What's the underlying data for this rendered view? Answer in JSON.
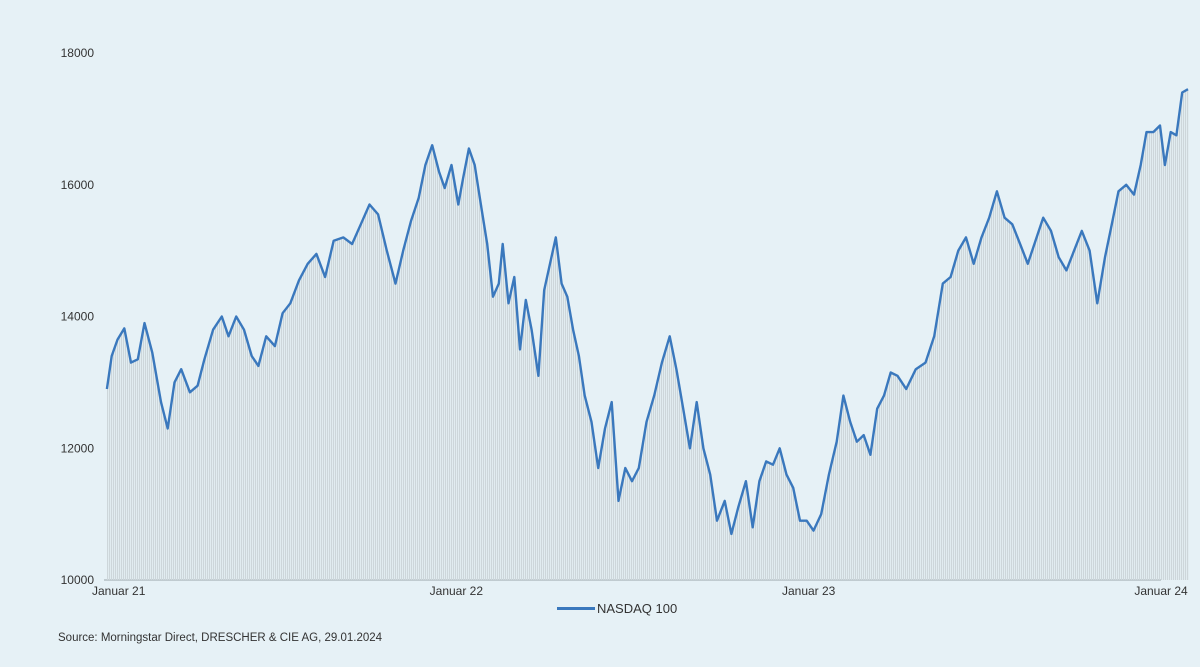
{
  "chart_data": {
    "type": "line",
    "title": "",
    "xlabel": "",
    "ylabel": "",
    "ylim": [
      10000,
      18000
    ],
    "y_ticks": [
      "10000",
      "12000",
      "14000",
      "16000",
      "18000"
    ],
    "x_ticks": [
      {
        "label": "Januar 21",
        "x": "2021-01"
      },
      {
        "label": "Januar 22",
        "x": "2022-01"
      },
      {
        "label": "Januar 23",
        "x": "2023-01"
      },
      {
        "label": "Januar 24",
        "x": "2024-01"
      }
    ],
    "x_range": [
      "2021-01",
      "2024-01"
    ],
    "grid": false,
    "legend": "bottom",
    "colors": {
      "line": "#3a78bd",
      "fill": "#cdd6da",
      "background": "#e6f1f6"
    },
    "series": [
      {
        "name": "NASDAQ 100",
        "points": [
          [
            "2021-01-04",
            12900
          ],
          [
            "2021-01-09",
            13400
          ],
          [
            "2021-01-15",
            13650
          ],
          [
            "2021-01-22",
            13820
          ],
          [
            "2021-01-29",
            13300
          ],
          [
            "2021-02-05",
            13350
          ],
          [
            "2021-02-12",
            13900
          ],
          [
            "2021-02-20",
            13450
          ],
          [
            "2021-03-01",
            12700
          ],
          [
            "2021-03-08",
            12300
          ],
          [
            "2021-03-15",
            13000
          ],
          [
            "2021-03-22",
            13200
          ],
          [
            "2021-03-31",
            12850
          ],
          [
            "2021-04-08",
            12950
          ],
          [
            "2021-04-15",
            13350
          ],
          [
            "2021-04-24",
            13800
          ],
          [
            "2021-05-03",
            14000
          ],
          [
            "2021-05-10",
            13700
          ],
          [
            "2021-05-18",
            14000
          ],
          [
            "2021-05-26",
            13800
          ],
          [
            "2021-06-03",
            13400
          ],
          [
            "2021-06-10",
            13250
          ],
          [
            "2021-06-18",
            13700
          ],
          [
            "2021-06-27",
            13550
          ],
          [
            "2021-07-05",
            14050
          ],
          [
            "2021-07-13",
            14200
          ],
          [
            "2021-07-22",
            14550
          ],
          [
            "2021-07-31",
            14800
          ],
          [
            "2021-08-09",
            14950
          ],
          [
            "2021-08-18",
            14600
          ],
          [
            "2021-08-27",
            15150
          ],
          [
            "2021-09-06",
            15200
          ],
          [
            "2021-09-15",
            15100
          ],
          [
            "2021-09-24",
            15400
          ],
          [
            "2021-10-03",
            15700
          ],
          [
            "2021-10-12",
            15550
          ],
          [
            "2021-10-21",
            15000
          ],
          [
            "2021-10-30",
            14500
          ],
          [
            "2021-11-07",
            15000
          ],
          [
            "2021-11-15",
            15450
          ],
          [
            "2021-11-23",
            15800
          ],
          [
            "2021-11-30",
            16300
          ],
          [
            "2021-12-07",
            16600
          ],
          [
            "2021-12-14",
            16200
          ],
          [
            "2021-12-20",
            15950
          ],
          [
            "2021-12-27",
            16300
          ],
          [
            "2022-01-03",
            15700
          ],
          [
            "2022-01-08",
            16100
          ],
          [
            "2022-01-14",
            16550
          ],
          [
            "2022-01-20",
            16300
          ],
          [
            "2022-01-27",
            15650
          ],
          [
            "2022-02-02",
            15100
          ],
          [
            "2022-02-08",
            14300
          ],
          [
            "2022-02-14",
            14500
          ],
          [
            "2022-02-18",
            15100
          ],
          [
            "2022-02-24",
            14200
          ],
          [
            "2022-03-02",
            14600
          ],
          [
            "2022-03-08",
            13500
          ],
          [
            "2022-03-14",
            14250
          ],
          [
            "2022-03-20",
            13800
          ],
          [
            "2022-03-27",
            13100
          ],
          [
            "2022-04-02",
            14400
          ],
          [
            "2022-04-08",
            14800
          ],
          [
            "2022-04-14",
            15200
          ],
          [
            "2022-04-20",
            14500
          ],
          [
            "2022-04-26",
            14300
          ],
          [
            "2022-05-02",
            13800
          ],
          [
            "2022-05-08",
            13400
          ],
          [
            "2022-05-14",
            12800
          ],
          [
            "2022-05-21",
            12400
          ],
          [
            "2022-05-28",
            11700
          ],
          [
            "2022-06-04",
            12300
          ],
          [
            "2022-06-11",
            12700
          ],
          [
            "2022-06-18",
            11200
          ],
          [
            "2022-06-25",
            11700
          ],
          [
            "2022-07-02",
            11500
          ],
          [
            "2022-07-09",
            11700
          ],
          [
            "2022-07-17",
            12400
          ],
          [
            "2022-07-25",
            12800
          ],
          [
            "2022-08-02",
            13300
          ],
          [
            "2022-08-10",
            13700
          ],
          [
            "2022-08-17",
            13200
          ],
          [
            "2022-08-24",
            12600
          ],
          [
            "2022-08-31",
            12000
          ],
          [
            "2022-09-07",
            12700
          ],
          [
            "2022-09-14",
            12000
          ],
          [
            "2022-09-21",
            11600
          ],
          [
            "2022-09-28",
            10900
          ],
          [
            "2022-10-06",
            11200
          ],
          [
            "2022-10-13",
            10700
          ],
          [
            "2022-10-20",
            11100
          ],
          [
            "2022-10-28",
            11500
          ],
          [
            "2022-11-04",
            10800
          ],
          [
            "2022-11-11",
            11500
          ],
          [
            "2022-11-18",
            11800
          ],
          [
            "2022-11-25",
            11750
          ],
          [
            "2022-12-02",
            12000
          ],
          [
            "2022-12-09",
            11600
          ],
          [
            "2022-12-16",
            11400
          ],
          [
            "2022-12-23",
            10900
          ],
          [
            "2022-12-30",
            10900
          ],
          [
            "2023-01-06",
            10750
          ],
          [
            "2023-01-14",
            11000
          ],
          [
            "2023-01-22",
            11600
          ],
          [
            "2023-01-30",
            12100
          ],
          [
            "2023-02-06",
            12800
          ],
          [
            "2023-02-13",
            12400
          ],
          [
            "2023-02-20",
            12100
          ],
          [
            "2023-02-27",
            12200
          ],
          [
            "2023-03-06",
            11900
          ],
          [
            "2023-03-13",
            12600
          ],
          [
            "2023-03-20",
            12800
          ],
          [
            "2023-03-27",
            13150
          ],
          [
            "2023-04-03",
            13100
          ],
          [
            "2023-04-12",
            12900
          ],
          [
            "2023-04-22",
            13200
          ],
          [
            "2023-05-02",
            13300
          ],
          [
            "2023-05-11",
            13700
          ],
          [
            "2023-05-20",
            14500
          ],
          [
            "2023-05-28",
            14600
          ],
          [
            "2023-06-05",
            15000
          ],
          [
            "2023-06-13",
            15200
          ],
          [
            "2023-06-21",
            14800
          ],
          [
            "2023-06-29",
            15200
          ],
          [
            "2023-07-07",
            15500
          ],
          [
            "2023-07-15",
            15900
          ],
          [
            "2023-07-23",
            15500
          ],
          [
            "2023-07-31",
            15400
          ],
          [
            "2023-08-08",
            15100
          ],
          [
            "2023-08-16",
            14800
          ],
          [
            "2023-08-24",
            15150
          ],
          [
            "2023-09-01",
            15500
          ],
          [
            "2023-09-09",
            15300
          ],
          [
            "2023-09-17",
            14900
          ],
          [
            "2023-09-25",
            14700
          ],
          [
            "2023-10-03",
            15000
          ],
          [
            "2023-10-11",
            15300
          ],
          [
            "2023-10-19",
            15000
          ],
          [
            "2023-10-27",
            14200
          ],
          [
            "2023-11-04",
            14900
          ],
          [
            "2023-11-11",
            15400
          ],
          [
            "2023-11-18",
            15900
          ],
          [
            "2023-11-26",
            16000
          ],
          [
            "2023-12-04",
            15850
          ],
          [
            "2023-12-11",
            16300
          ],
          [
            "2023-12-17",
            16800
          ],
          [
            "2023-12-24",
            16800
          ],
          [
            "2023-12-31",
            16900
          ],
          [
            "2024-01-05",
            16300
          ],
          [
            "2024-01-11",
            16800
          ],
          [
            "2024-01-17",
            16750
          ],
          [
            "2024-01-23",
            17400
          ],
          [
            "2024-01-29",
            17450
          ]
        ]
      }
    ]
  },
  "legend_label": "NASDAQ 100",
  "source": "Source: Morningstar Direct, DRESCHER & CIE AG, 29.01.2024"
}
